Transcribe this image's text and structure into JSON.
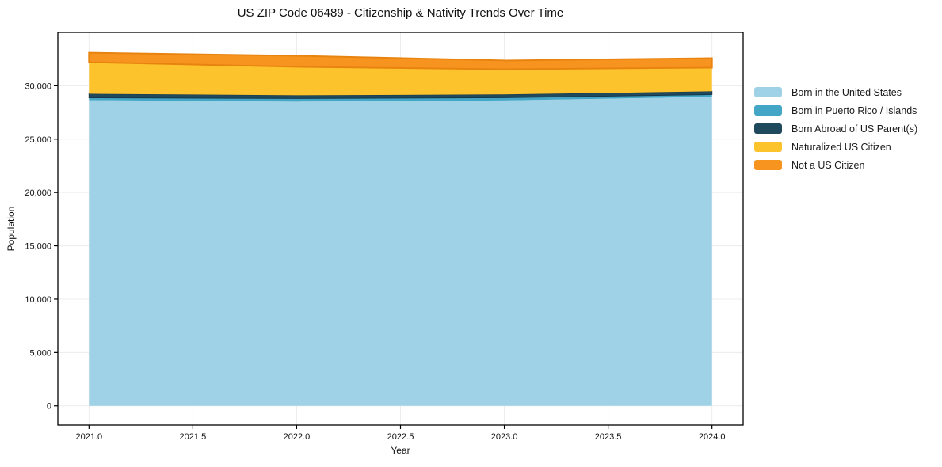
{
  "figure": {
    "title": "US ZIP Code 06489 - Citizenship & Nativity Trends Over Time",
    "xlabel": "Year",
    "ylabel": "Population"
  },
  "chart_data": {
    "type": "area",
    "stacked": true,
    "title": "US ZIP Code 06489 - Citizenship & Nativity Trends Over Time",
    "xlabel": "Year",
    "ylabel": "Population",
    "x": [
      2021,
      2022,
      2023,
      2024
    ],
    "series": [
      {
        "name": "Born in the United States",
        "color": "#a0d2e7",
        "values": [
          28650,
          28520,
          28630,
          28960
        ]
      },
      {
        "name": "Born in Puerto Rico / Islands",
        "color": "#44a6c6",
        "values": [
          230,
          290,
          260,
          220
        ]
      },
      {
        "name": "Born Abroad of US Parent(s)",
        "color": "#1f4a5e",
        "edge_color": "#16374a",
        "edge_width": 1,
        "values": [
          370,
          300,
          300,
          300
        ]
      },
      {
        "name": "Naturalized US Citizen",
        "color": "#fcc32d",
        "values": [
          2960,
          2670,
          2360,
          2220
        ]
      },
      {
        "name": "Not a US Citizen",
        "color": "#f7941f",
        "edge_color": "#e8830f",
        "edge_width": 2,
        "values": [
          890,
          1030,
          820,
          890
        ]
      }
    ],
    "stack_totals": [
      33100,
      32810,
      32370,
      32590
    ],
    "xticks": {
      "values": [
        2021.0,
        2021.5,
        2022.0,
        2022.5,
        2023.0,
        2023.5,
        2024.0
      ],
      "labels": [
        "2021.0",
        "2021.5",
        "2022.0",
        "2022.5",
        "2023.0",
        "2023.5",
        "2024.0"
      ]
    },
    "yticks": {
      "values": [
        0,
        5000,
        10000,
        15000,
        20000,
        25000,
        30000
      ],
      "labels": [
        "0",
        "5,000",
        "10,000",
        "15,000",
        "20,000",
        "25,000",
        "30,000"
      ]
    },
    "xlim": [
      2020.85,
      2024.15
    ],
    "ylim": [
      -1800,
      35000
    ],
    "grid": true,
    "grid_color": "#ececec",
    "frame_color": "#000000",
    "legend_position": "right outside"
  }
}
